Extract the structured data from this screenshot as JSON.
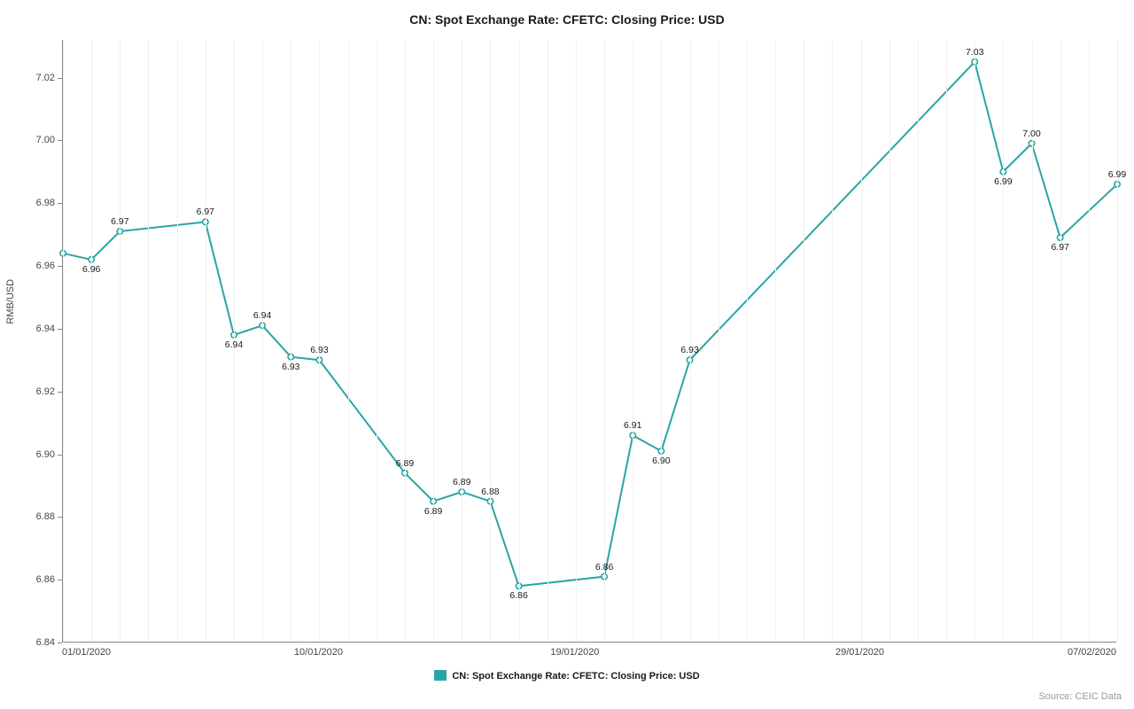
{
  "title": "CN: Spot Exchange Rate: CFETC: Closing Price: USD",
  "y_axis_label": "RMB/USD",
  "source_text": "Source: CEIC Data",
  "legend_label": "CN: Spot Exchange Rate: CFETC: Closing Price: USD",
  "colors": {
    "line": "#29a5a5",
    "marker_fill": "#ffffff",
    "marker_stroke": "#29a5a5",
    "grid": "#f0f0f0",
    "axis": "#888888",
    "text": "#1a1a1a",
    "muted": "#999999",
    "background": "#ffffff"
  },
  "style": {
    "line_width": 2,
    "marker_radius": 3.2,
    "marker_stroke_width": 1.6,
    "title_fontsize": 14,
    "label_fontsize": 11,
    "point_label_fontsize": 10.5
  },
  "x_axis": {
    "domain_min": 0,
    "domain_max": 37,
    "ticks": [
      {
        "pos": 0,
        "label": "01/01/2020"
      },
      {
        "pos": 9,
        "label": "10/01/2020"
      },
      {
        "pos": 18,
        "label": "19/01/2020"
      },
      {
        "pos": 28,
        "label": "29/01/2020"
      },
      {
        "pos": 37,
        "label": "07/02/2020"
      }
    ],
    "gridlines_every": 1
  },
  "y_axis": {
    "domain_min": 6.84,
    "domain_max": 7.032,
    "ticks": [
      {
        "val": 6.84,
        "label": "6.84"
      },
      {
        "val": 6.86,
        "label": "6.86"
      },
      {
        "val": 6.88,
        "label": "6.88"
      },
      {
        "val": 6.9,
        "label": "6.90"
      },
      {
        "val": 6.92,
        "label": "6.92"
      },
      {
        "val": 6.94,
        "label": "6.94"
      },
      {
        "val": 6.96,
        "label": "6.96"
      },
      {
        "val": 6.98,
        "label": "6.98"
      },
      {
        "val": 7.0,
        "label": "7.00"
      },
      {
        "val": 7.02,
        "label": "7.02"
      }
    ]
  },
  "series": {
    "name": "CN: Spot Exchange Rate: CFETC: Closing Price: USD",
    "points": [
      {
        "x": 0,
        "y": 6.964,
        "label": null
      },
      {
        "x": 1,
        "y": 6.962,
        "label": "6.96",
        "la": "b"
      },
      {
        "x": 2,
        "y": 6.971,
        "label": "6.97"
      },
      {
        "x": 5,
        "y": 6.974,
        "label": "6.97"
      },
      {
        "x": 6,
        "y": 6.938,
        "label": "6.94",
        "la": "b"
      },
      {
        "x": 7,
        "y": 6.941,
        "label": "6.94"
      },
      {
        "x": 8,
        "y": 6.931,
        "label": "6.93",
        "la": "b"
      },
      {
        "x": 9,
        "y": 6.93,
        "label": "6.93"
      },
      {
        "x": 12,
        "y": 6.894,
        "label": "6.89"
      },
      {
        "x": 13,
        "y": 6.885,
        "label": "6.89",
        "la": "b"
      },
      {
        "x": 14,
        "y": 6.888,
        "label": "6.89"
      },
      {
        "x": 15,
        "y": 6.885,
        "label": "6.88"
      },
      {
        "x": 16,
        "y": 6.858,
        "label": "6.86",
        "la": "b"
      },
      {
        "x": 19,
        "y": 6.861,
        "label": "6.86"
      },
      {
        "x": 20,
        "y": 6.906,
        "label": "6.91"
      },
      {
        "x": 21,
        "y": 6.901,
        "label": "6.90",
        "la": "b"
      },
      {
        "x": 22,
        "y": 6.93,
        "label": "6.93"
      },
      {
        "x": 32,
        "y": 7.025,
        "label": "7.03"
      },
      {
        "x": 33,
        "y": 6.99,
        "label": "6.99",
        "la": "b"
      },
      {
        "x": 34,
        "y": 6.999,
        "label": "7.00"
      },
      {
        "x": 35,
        "y": 6.969,
        "label": "6.97",
        "la": "b"
      },
      {
        "x": 37,
        "y": 6.986,
        "label": "6.99"
      }
    ]
  }
}
